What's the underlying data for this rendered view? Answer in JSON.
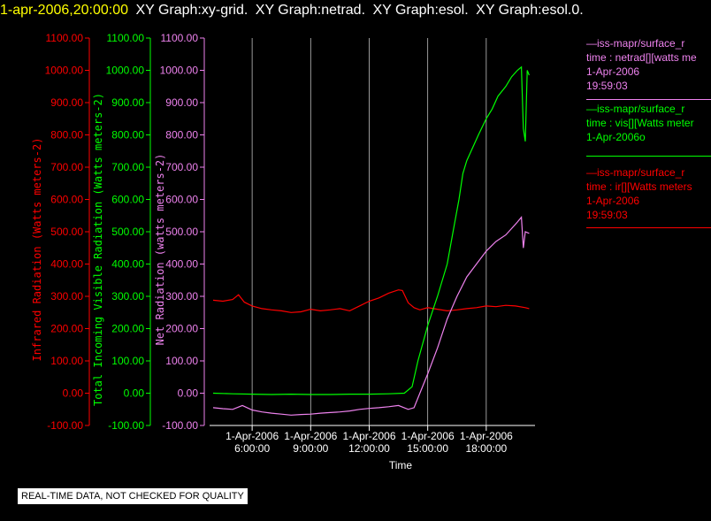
{
  "header": {
    "datetime": "1-apr-2006,20:00:00",
    "graphs": [
      "XY Graph:xy-grid.",
      "XY Graph:netrad.",
      "XY Graph:esol.",
      "XY Graph:esol.0."
    ]
  },
  "colors": {
    "ir": "#ff0000",
    "vis": "#00ff00",
    "netrad": "#ee82ee",
    "datetime": "#ffff00",
    "grid": "#ffffff"
  },
  "legend": {
    "netrad": [
      "—iss-mapr/surface_r",
      "time : netrad[][watts me",
      "1-Apr-2006",
      "19:59:03"
    ],
    "vis": [
      "—iss-mapr/surface_r",
      "time : vis[][Watts meter",
      "1-Apr-2006o"
    ],
    "ir": [
      "—iss-mapr/surface_r",
      "time : ir[][Watts meters",
      "1-Apr-2006",
      "19:59:03"
    ]
  },
  "footer": {
    "quality_notice": "REAL-TIME DATA, NOT CHECKED FOR QUALITY"
  },
  "chart_data": {
    "type": "line",
    "xlabel": "Time",
    "x_ticks": [
      {
        "hour": 6,
        "date": "1-Apr-2006",
        "time": "6:00:00"
      },
      {
        "hour": 9,
        "date": "1-Apr-2006",
        "time": "9:00:00"
      },
      {
        "hour": 12,
        "date": "1-Apr-2006",
        "time": "12:00:00"
      },
      {
        "hour": 15,
        "date": "1-Apr-2006",
        "time": "15:00:00"
      },
      {
        "hour": 18,
        "date": "1-Apr-2006",
        "time": "18:00:00"
      }
    ],
    "xlim_hours": [
      4,
      20.5
    ],
    "axes": [
      {
        "id": "ir",
        "label": "Infrared Radiation (Watts meters-2)",
        "ylim": [
          -100,
          1100
        ],
        "ticks": [
          "-100.00",
          "0.00",
          "100.00",
          "200.00",
          "300.00",
          "400.00",
          "500.00",
          "600.00",
          "700.00",
          "800.00",
          "900.00",
          "1000.00",
          "1100.00"
        ]
      },
      {
        "id": "vis",
        "label": "Total Incoming Visible Radiation (Watts meters-2)",
        "ylim": [
          -100,
          1100
        ],
        "ticks": [
          "-100.00",
          "0.00",
          "100.00",
          "200.00",
          "300.00",
          "400.00",
          "500.00",
          "600.00",
          "700.00",
          "800.00",
          "900.00",
          "1000.00",
          "1100.00"
        ]
      },
      {
        "id": "netrad",
        "label": "Net Radiation (watts meters-2)",
        "ylim": [
          -100,
          1100
        ],
        "ticks": [
          "-100.00",
          "0.00",
          "100.00",
          "200.00",
          "300.00",
          "400.00",
          "500.00",
          "600.00",
          "700.00",
          "800.00",
          "900.00",
          "1000.00",
          "1100.00"
        ]
      }
    ],
    "grid": "vertical",
    "series": [
      {
        "id": "ir",
        "points": [
          [
            4,
            288
          ],
          [
            4.5,
            285
          ],
          [
            5,
            290
          ],
          [
            5.3,
            305
          ],
          [
            5.6,
            282
          ],
          [
            6,
            270
          ],
          [
            6.5,
            262
          ],
          [
            7,
            258
          ],
          [
            7.5,
            255
          ],
          [
            8,
            250
          ],
          [
            8.5,
            252
          ],
          [
            9,
            260
          ],
          [
            9.5,
            255
          ],
          [
            10,
            258
          ],
          [
            10.5,
            262
          ],
          [
            11,
            255
          ],
          [
            11.5,
            270
          ],
          [
            12,
            285
          ],
          [
            12.5,
            295
          ],
          [
            13,
            310
          ],
          [
            13.5,
            320
          ],
          [
            13.7,
            318
          ],
          [
            14,
            280
          ],
          [
            14.3,
            265
          ],
          [
            14.6,
            258
          ],
          [
            15,
            265
          ],
          [
            15.5,
            260
          ],
          [
            16,
            255
          ],
          [
            16.5,
            258
          ],
          [
            17,
            262
          ],
          [
            17.5,
            265
          ],
          [
            18,
            270
          ],
          [
            18.5,
            268
          ],
          [
            19,
            272
          ],
          [
            19.5,
            270
          ],
          [
            20,
            265
          ],
          [
            20.2,
            262
          ]
        ]
      },
      {
        "id": "vis",
        "points": [
          [
            4,
            0
          ],
          [
            5,
            -2
          ],
          [
            6,
            -3
          ],
          [
            7,
            -4
          ],
          [
            8,
            -3
          ],
          [
            9,
            -4
          ],
          [
            10,
            -4
          ],
          [
            11,
            -3
          ],
          [
            12,
            -3
          ],
          [
            13,
            -2
          ],
          [
            13.8,
            0
          ],
          [
            14.2,
            20
          ],
          [
            14.5,
            100
          ],
          [
            15,
            210
          ],
          [
            15.5,
            300
          ],
          [
            16,
            400
          ],
          [
            16.3,
            500
          ],
          [
            16.6,
            600
          ],
          [
            16.8,
            680
          ],
          [
            17,
            720
          ],
          [
            17.3,
            760
          ],
          [
            17.6,
            800
          ],
          [
            18,
            850
          ],
          [
            18.3,
            880
          ],
          [
            18.6,
            920
          ],
          [
            19,
            950
          ],
          [
            19.3,
            980
          ],
          [
            19.6,
            1000
          ],
          [
            19.8,
            1010
          ],
          [
            19.9,
            820
          ],
          [
            20,
            780
          ],
          [
            20.1,
            1000
          ],
          [
            20.2,
            985
          ]
        ]
      },
      {
        "id": "netrad",
        "points": [
          [
            4,
            -45
          ],
          [
            4.5,
            -48
          ],
          [
            5,
            -50
          ],
          [
            5.5,
            -38
          ],
          [
            6,
            -52
          ],
          [
            6.5,
            -58
          ],
          [
            7,
            -62
          ],
          [
            7.5,
            -65
          ],
          [
            8,
            -68
          ],
          [
            8.5,
            -66
          ],
          [
            9,
            -65
          ],
          [
            9.5,
            -62
          ],
          [
            10,
            -60
          ],
          [
            10.5,
            -58
          ],
          [
            11,
            -55
          ],
          [
            11.5,
            -50
          ],
          [
            12,
            -47
          ],
          [
            12.5,
            -45
          ],
          [
            13,
            -42
          ],
          [
            13.5,
            -38
          ],
          [
            14,
            -50
          ],
          [
            14.3,
            -45
          ],
          [
            14.6,
            0
          ],
          [
            15,
            60
          ],
          [
            15.5,
            140
          ],
          [
            16,
            230
          ],
          [
            16.5,
            300
          ],
          [
            17,
            360
          ],
          [
            17.5,
            400
          ],
          [
            18,
            440
          ],
          [
            18.5,
            470
          ],
          [
            19,
            490
          ],
          [
            19.3,
            510
          ],
          [
            19.6,
            530
          ],
          [
            19.8,
            545
          ],
          [
            19.9,
            450
          ],
          [
            20,
            500
          ],
          [
            20.2,
            495
          ]
        ]
      }
    ]
  }
}
